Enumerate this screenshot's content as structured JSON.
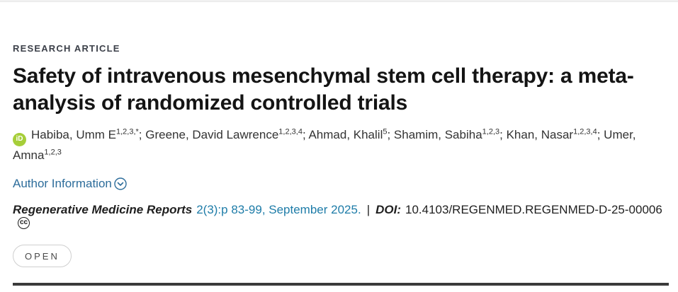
{
  "article": {
    "kicker": "RESEARCH ARTICLE",
    "title": "Safety of intravenous mesenchymal stem cell therapy: a meta-analysis of randomized controlled trials",
    "author_information_label": "Author Information",
    "open_badge": "OPEN"
  },
  "authors": {
    "separator": ";",
    "list": [
      {
        "name": "Habiba, Umm E",
        "affiliations": "1,2,3,*"
      },
      {
        "name": "Greene, David Lawrence",
        "affiliations": "1,2,3,4"
      },
      {
        "name": "Ahmad, Khalil",
        "affiliations": "5"
      },
      {
        "name": "Shamim, Sabiha",
        "affiliations": "1,2,3"
      },
      {
        "name": "Khan, Nasar",
        "affiliations": "1,2,3,4"
      },
      {
        "name": "Umer, Amna",
        "affiliations": "1,2,3"
      }
    ]
  },
  "citation": {
    "journal": "Regenerative Medicine Reports",
    "issue_pages": "2(3):p 83-99, September 2025.",
    "separator": "|",
    "doi_label": "DOI:",
    "doi_value": "10.4103/REGENMED.REGENMED-D-25-00006"
  },
  "icons": {
    "orcid_text": "iD",
    "cc_text": "cc"
  },
  "colors": {
    "link_blue": "#2d6d9b",
    "citation_blue": "#1e7ca8",
    "orcid_green": "#a6ce39",
    "kicker_gray": "#3c4049",
    "rule_dark": "#3b3b3b"
  }
}
